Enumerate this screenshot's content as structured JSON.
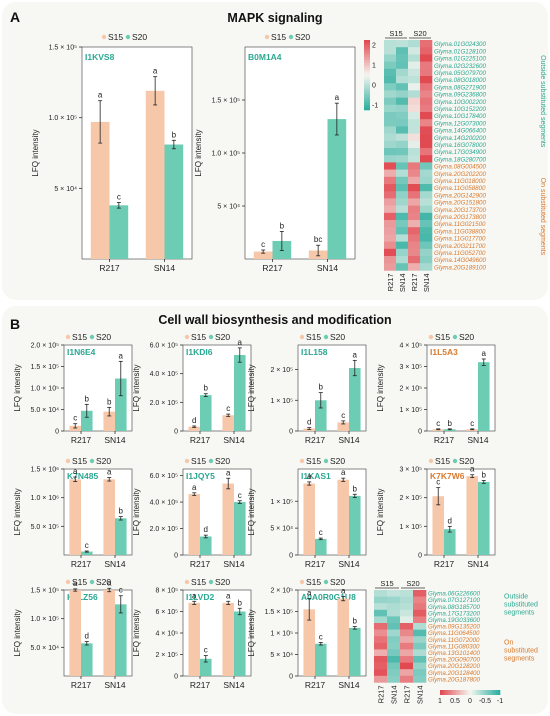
{
  "colors": {
    "S15": "#f6c7a9",
    "S20": "#6ccdb4",
    "teal": "#2aa891",
    "orange": "#d97a2e"
  },
  "panel_a": {
    "letter": "A",
    "title": "MAPK signaling"
  },
  "panel_b": {
    "letter": "B",
    "title": "Cell wall biosynthesis and modification"
  },
  "legend": {
    "s15": "S15",
    "s20": "S20"
  },
  "ylabel": "LFQ intensity",
  "chart_data": [
    {
      "type": "bar",
      "id": "I1KVS8",
      "protein": "I1KVS8",
      "protein_color": "teal",
      "categories": [
        "R217",
        "SN14"
      ],
      "ylim": [
        0,
        150000
      ],
      "yticks": [
        {
          "v": 50000,
          "l": "5 × 10⁴"
        },
        {
          "v": 100000,
          "l": "1.0 × 10⁵"
        },
        {
          "v": 150000,
          "l": "1.5 × 10⁵"
        }
      ],
      "series": [
        {
          "name": "S15",
          "values": [
            97000,
            119000
          ],
          "errors": [
            15000,
            10000
          ],
          "letters": [
            "a",
            "a"
          ]
        },
        {
          "name": "S20",
          "values": [
            38000,
            81000
          ],
          "errors": [
            2000,
            3000
          ],
          "letters": [
            "c",
            "b"
          ]
        }
      ]
    },
    {
      "type": "bar",
      "id": "B0M1A4",
      "protein": "B0M1A4",
      "protein_color": "teal",
      "categories": [
        "R217",
        "SN14"
      ],
      "ylim": [
        0,
        200000
      ],
      "yticks": [
        {
          "v": 50000,
          "l": "5 × 10⁴"
        },
        {
          "v": 100000,
          "l": "1.0 × 10⁵"
        },
        {
          "v": 150000,
          "l": "1.5 × 10⁵"
        }
      ],
      "series": [
        {
          "name": "S15",
          "values": [
            7000,
            8000
          ],
          "errors": [
            1500,
            5000
          ],
          "letters": [
            "c",
            "bc"
          ]
        },
        {
          "name": "S20",
          "values": [
            17000,
            132000
          ],
          "errors": [
            9000,
            15000
          ],
          "letters": [
            "b",
            "a"
          ]
        }
      ]
    },
    {
      "type": "bar",
      "id": "I1N6E4",
      "protein": "I1N6E4",
      "protein_color": "teal",
      "categories": [
        "R217",
        "SN14"
      ],
      "ylim": [
        0,
        200000
      ],
      "yticks": [
        {
          "v": 0,
          "l": "0"
        },
        {
          "v": 50000,
          "l": "5.0 × 10⁴"
        },
        {
          "v": 100000,
          "l": "1.0 × 10⁵"
        },
        {
          "v": 150000,
          "l": "1.5 × 10⁵"
        },
        {
          "v": 200000,
          "l": "2.0 × 10⁵"
        }
      ],
      "series": [
        {
          "name": "S15",
          "values": [
            12000,
            45000
          ],
          "errors": [
            5000,
            10000
          ],
          "letters": [
            "c",
            "b"
          ]
        },
        {
          "name": "S20",
          "values": [
            47000,
            122000
          ],
          "errors": [
            15000,
            40000
          ],
          "letters": [
            "b",
            "a"
          ]
        }
      ]
    },
    {
      "type": "bar",
      "id": "I1KDI6",
      "protein": "I1KDI6",
      "protein_color": "teal",
      "categories": [
        "R217",
        "SN14"
      ],
      "ylim": [
        0,
        600000
      ],
      "yticks": [
        {
          "v": 0,
          "l": "0"
        },
        {
          "v": 200000,
          "l": "2.0 × 10⁵"
        },
        {
          "v": 400000,
          "l": "4.0 × 10⁵"
        },
        {
          "v": 600000,
          "l": "6.0 × 10⁵"
        }
      ],
      "series": [
        {
          "name": "S15",
          "values": [
            30000,
            110000
          ],
          "errors": [
            5000,
            8000
          ],
          "letters": [
            "d",
            "c"
          ]
        },
        {
          "name": "S20",
          "values": [
            250000,
            530000
          ],
          "errors": [
            10000,
            50000
          ],
          "letters": [
            "b",
            "a"
          ]
        }
      ]
    },
    {
      "type": "bar",
      "id": "I1L158",
      "protein": "I1L158",
      "protein_color": "teal",
      "categories": [
        "R217",
        "SN14"
      ],
      "ylim": [
        0,
        280000
      ],
      "yticks": [
        {
          "v": 0,
          "l": "0"
        },
        {
          "v": 100000,
          "l": "1 × 10⁵"
        },
        {
          "v": 200000,
          "l": "2 × 10⁵"
        }
      ],
      "series": [
        {
          "name": "S15",
          "values": [
            8000,
            28000
          ],
          "errors": [
            3000,
            5000
          ],
          "letters": [
            "d",
            "c"
          ]
        },
        {
          "name": "S20",
          "values": [
            100000,
            205000
          ],
          "errors": [
            25000,
            25000
          ],
          "letters": [
            "b",
            "a"
          ]
        }
      ]
    },
    {
      "type": "bar",
      "id": "I1L5A3",
      "protein": "I1L5A3",
      "protein_color": "orange",
      "categories": [
        "R217",
        "SN14"
      ],
      "ylim": [
        0,
        400000
      ],
      "yticks": [
        {
          "v": 0,
          "l": "0"
        },
        {
          "v": 100000,
          "l": "1 × 10⁵"
        },
        {
          "v": 200000,
          "l": "2 × 10⁵"
        },
        {
          "v": 300000,
          "l": "3 × 10⁵"
        },
        {
          "v": 400000,
          "l": "4 × 10⁵"
        }
      ],
      "series": [
        {
          "name": "S15",
          "values": [
            8000,
            8000
          ],
          "errors": [
            2000,
            2000
          ],
          "letters": [
            "c",
            "c"
          ]
        },
        {
          "name": "S20",
          "values": [
            8000,
            320000
          ],
          "errors": [
            2000,
            15000
          ],
          "letters": [
            "b",
            "a"
          ]
        }
      ]
    },
    {
      "type": "bar",
      "id": "K7N485",
      "protein": "K7N485",
      "protein_color": "teal",
      "categories": [
        "R217",
        "SN14"
      ],
      "ylim": [
        0,
        1500000
      ],
      "yticks": [
        {
          "v": 500000,
          "l": "5.0 × 10⁵"
        },
        {
          "v": 1000000,
          "l": "1.0 × 10⁶"
        },
        {
          "v": 1500000,
          "l": "1.5 × 10⁶"
        }
      ],
      "series": [
        {
          "name": "S15",
          "values": [
            1320000,
            1320000
          ],
          "errors": [
            40000,
            30000
          ],
          "letters": [
            "a",
            "a"
          ]
        },
        {
          "name": "S20",
          "values": [
            60000,
            640000
          ],
          "errors": [
            10000,
            30000
          ],
          "letters": [
            "c",
            "b"
          ]
        }
      ]
    },
    {
      "type": "bar",
      "id": "I1JQY5",
      "protein": "I1JQY5",
      "protein_color": "teal",
      "categories": [
        "R217",
        "SN14"
      ],
      "ylim": [
        0,
        650000
      ],
      "yticks": [
        {
          "v": 0,
          "l": "0"
        },
        {
          "v": 200000,
          "l": "2.0 × 10⁵"
        },
        {
          "v": 400000,
          "l": "4.0 × 10⁵"
        },
        {
          "v": 600000,
          "l": "6.0 × 10⁵"
        }
      ],
      "series": [
        {
          "name": "S15",
          "values": [
            460000,
            540000
          ],
          "errors": [
            10000,
            40000
          ],
          "letters": [
            "a",
            "a"
          ]
        },
        {
          "name": "S20",
          "values": [
            140000,
            400000
          ],
          "errors": [
            10000,
            10000
          ],
          "letters": [
            "d",
            "c"
          ]
        }
      ]
    },
    {
      "type": "bar",
      "id": "I1KAS1",
      "protein": "I1KAS1",
      "protein_color": "teal",
      "categories": [
        "R217",
        "SN14"
      ],
      "ylim": [
        0,
        160000
      ],
      "yticks": [
        {
          "v": 0,
          "l": "0"
        },
        {
          "v": 50000,
          "l": "5 × 10⁴"
        },
        {
          "v": 100000,
          "l": "1 × 10⁵"
        }
      ],
      "series": [
        {
          "name": "S15",
          "values": [
            133000,
            140000
          ],
          "errors": [
            3000,
            3000
          ],
          "letters": [
            "a",
            "a"
          ]
        },
        {
          "name": "S20",
          "values": [
            30000,
            110000
          ],
          "errors": [
            1500,
            3000
          ],
          "letters": [
            "c",
            "b"
          ]
        }
      ]
    },
    {
      "type": "bar",
      "id": "K7K7W6",
      "protein": "K7K7W6",
      "protein_color": "orange",
      "categories": [
        "R217",
        "SN14"
      ],
      "ylim": [
        0,
        300000
      ],
      "yticks": [
        {
          "v": 0,
          "l": "0"
        },
        {
          "v": 100000,
          "l": "1 × 10⁵"
        },
        {
          "v": 200000,
          "l": "2 × 10⁵"
        },
        {
          "v": 300000,
          "l": "3 × 10⁵"
        }
      ],
      "series": [
        {
          "name": "S15",
          "values": [
            205000,
            275000
          ],
          "errors": [
            30000,
            5000
          ],
          "letters": [
            "c",
            "a"
          ]
        },
        {
          "name": "S20",
          "values": [
            90000,
            255000
          ],
          "errors": [
            10000,
            5000
          ],
          "letters": [
            "d",
            "b"
          ]
        }
      ]
    },
    {
      "type": "bar",
      "id": "K7LZ56",
      "protein": "K7LZ56",
      "protein_color": "teal",
      "categories": [
        "R217",
        "SN14"
      ],
      "ylim": [
        0,
        150000
      ],
      "yticks": [
        {
          "v": 50000,
          "l": "5.0 × 10⁴"
        },
        {
          "v": 100000,
          "l": "1.0 × 10⁵"
        },
        {
          "v": 150000,
          "l": "1.5 × 10⁵"
        }
      ],
      "series": [
        {
          "name": "S15",
          "values": [
            150000,
            150000
          ],
          "errors": [
            2000,
            3000
          ],
          "letters": [
            "a",
            "a"
          ]
        },
        {
          "name": "S20",
          "values": [
            57000,
            125000
          ],
          "errors": [
            3000,
            15000
          ],
          "letters": [
            "d",
            "c"
          ]
        }
      ]
    },
    {
      "type": "bar",
      "id": "I1LVD2",
      "protein": "I1LVD2",
      "protein_color": "teal",
      "categories": [
        "R217",
        "SN14"
      ],
      "ylim": [
        0,
        800000
      ],
      "yticks": [
        {
          "v": 0,
          "l": "0"
        },
        {
          "v": 200000,
          "l": "2 × 10⁵"
        },
        {
          "v": 400000,
          "l": "4 × 10⁵"
        },
        {
          "v": 600000,
          "l": "6 × 10⁵"
        },
        {
          "v": 800000,
          "l": "8 × 10⁵"
        }
      ],
      "series": [
        {
          "name": "S15",
          "values": [
            680000,
            680000
          ],
          "errors": [
            15000,
            15000
          ],
          "letters": [
            "a",
            "a"
          ]
        },
        {
          "name": "S20",
          "values": [
            160000,
            600000
          ],
          "errors": [
            30000,
            30000
          ],
          "letters": [
            "c",
            "b"
          ]
        }
      ]
    },
    {
      "type": "bar",
      "id": "A0A0R0G1U8",
      "protein": "A0A0R0G1U8",
      "protein_color": "teal",
      "categories": [
        "R217",
        "SN14"
      ],
      "ylim": [
        0,
        200000
      ],
      "yticks": [
        {
          "v": 0,
          "l": "0"
        },
        {
          "v": 50000,
          "l": "5 × 10⁴"
        },
        {
          "v": 100000,
          "l": "1 × 10⁵"
        },
        {
          "v": 150000,
          "l": "1.5 × 10⁵"
        },
        {
          "v": 200000,
          "l": "2 × 10⁵"
        }
      ],
      "series": [
        {
          "name": "S15",
          "values": [
            155000,
            180000
          ],
          "errors": [
            25000,
            5000
          ],
          "letters": [
            "a",
            "a"
          ]
        },
        {
          "name": "S20",
          "values": [
            75000,
            112000
          ],
          "errors": [
            3000,
            3000
          ],
          "letters": [
            "c",
            "b"
          ]
        }
      ]
    }
  ],
  "heatmap_a": {
    "groups": [
      "S15",
      "S20"
    ],
    "columns": [
      "R217",
      "SN14",
      "R217",
      "SN14"
    ],
    "scale_ticks": [
      "2",
      "1",
      "0",
      "-1"
    ],
    "genes_outside": [
      "Glyma.01G024300",
      "Glyma.01G128100",
      "Glyma.01G225100",
      "Glyma.02G232600",
      "Glyma.05G079700",
      "Glyma.08G018000",
      "Glyma.08G271900",
      "Glyma.09G236800",
      "Glyma.10G002200",
      "Glyma.10G152200",
      "Glyma.10G178400",
      "Glyma.12G073000",
      "Glyma.14G066400",
      "Glyma.14G200200",
      "Glyma.16G078000",
      "Glyma.17G034900",
      "Glyma.18G280700"
    ],
    "genes_on": [
      "Glyma.08G004500",
      "Glyma.20G202200",
      "Glyma.11G018000",
      "Glyma.11G058800",
      "Glyma.20G142900",
      "Glyma.20G151800",
      "Glyma.20G173700",
      "Glyma.20G173800",
      "Glyma.11G021500",
      "Glyma.11G038800",
      "Glyma.11G017700",
      "Glyma.20G211700",
      "Glyma.11G052700",
      "Glyma.14G049600",
      "Glyma.20G189100"
    ],
    "label_outside": "Outside substituted segments",
    "label_on": "On substituted segments"
  },
  "heatmap_b": {
    "groups": [
      "S15",
      "S20"
    ],
    "columns": [
      "R217",
      "SN14",
      "R217",
      "SN14"
    ],
    "scale_ticks": [
      "1",
      "0.5",
      "0",
      "-0.5",
      "-1"
    ],
    "genes_outside": [
      "Glyma.06G226600",
      "Glyma.07G127100",
      "Glyma.08G185700",
      "Glyma.17G173200",
      "Glyma.19G033600"
    ],
    "genes_on": [
      "Glyma.09G135200",
      "Glyma.11G064500",
      "Glyma.11G072000",
      "Glyma.11G080300",
      "Glyma.13G101400",
      "Glyma.20G090700",
      "Glyma.20G128200",
      "Glyma.20G128400",
      "Glyma.20G187800"
    ],
    "label_outside_lines": [
      "Outside",
      "substituted",
      "segments"
    ],
    "label_on_lines": [
      "On",
      "substituted",
      "segments"
    ]
  }
}
